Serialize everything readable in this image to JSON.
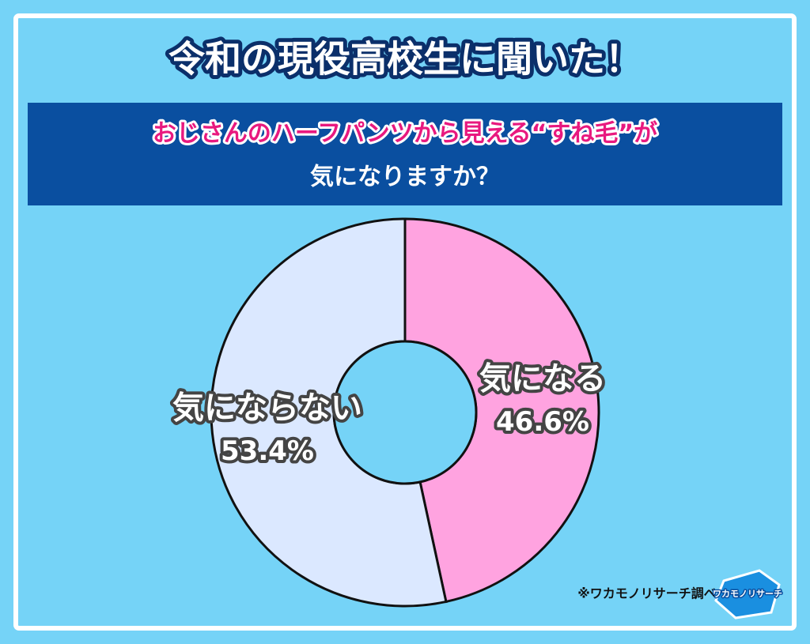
{
  "chart_data": {
    "type": "pie",
    "title": "令和の現役高校生に聞いた！",
    "subtitle": [
      "おじさんのハーフパンツから見える“すね毛”が",
      "気になりますか？"
    ],
    "categories": [
      "気になる",
      "気にならない"
    ],
    "values": [
      46.6,
      53.4
    ],
    "value_labels": [
      "46.6%",
      "53.4%"
    ],
    "colors": [
      "#ffa3e0",
      "#dbe8ff"
    ],
    "source": "※ワカモノリサーチ調べ",
    "logo": "ワカモノリサーチ"
  }
}
